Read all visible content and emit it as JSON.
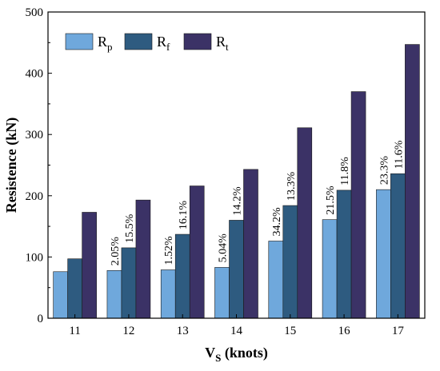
{
  "chart_data": {
    "type": "bar",
    "categories": [
      "11",
      "12",
      "13",
      "14",
      "15",
      "16",
      "17"
    ],
    "series": [
      {
        "name_main": "R",
        "name_sub": "p",
        "color": "#6fa8dc",
        "values": [
          76,
          78,
          79,
          83,
          126,
          161,
          210
        ]
      },
      {
        "name_main": "R",
        "name_sub": "f",
        "color": "#2e5b80",
        "values": [
          97,
          115,
          137,
          160,
          184,
          209,
          236
        ]
      },
      {
        "name_main": "R",
        "name_sub": "t",
        "color": "#3b3266",
        "values": [
          173,
          193,
          216,
          243,
          311,
          370,
          447
        ]
      }
    ],
    "annotations": [
      {
        "category": "12",
        "series": 0,
        "text": "2.05%"
      },
      {
        "category": "12",
        "series": 1,
        "text": "15.5%"
      },
      {
        "category": "13",
        "series": 0,
        "text": "1.52%"
      },
      {
        "category": "13",
        "series": 1,
        "text": "16.1%"
      },
      {
        "category": "14",
        "series": 0,
        "text": "5.04%"
      },
      {
        "category": "14",
        "series": 1,
        "text": "14.2%"
      },
      {
        "category": "15",
        "series": 0,
        "text": "34.2%"
      },
      {
        "category": "15",
        "series": 1,
        "text": "13.3%"
      },
      {
        "category": "16",
        "series": 0,
        "text": "21.5%"
      },
      {
        "category": "16",
        "series": 1,
        "text": "11.8%"
      },
      {
        "category": "17",
        "series": 0,
        "text": "23.3%"
      },
      {
        "category": "17",
        "series": 1,
        "text": "11.6%"
      }
    ],
    "xlabel_main": "V",
    "xlabel_sub": "S",
    "xlabel_rest": " (knots)",
    "ylabel": "Resistence (kN)",
    "ylim": [
      0,
      500
    ],
    "yticks": [
      0,
      100,
      200,
      300,
      400,
      500
    ],
    "grid": false,
    "legend_position": "top-left"
  }
}
